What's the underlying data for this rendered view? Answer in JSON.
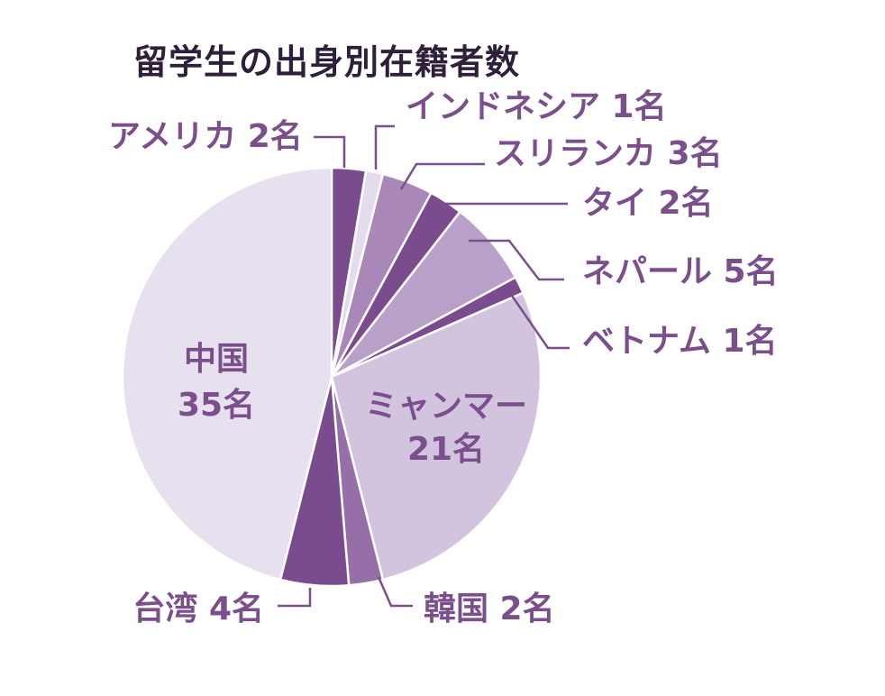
{
  "title": "留学生の出身別在籍者数",
  "chart_data": {
    "type": "pie",
    "title": "留学生の出身別在籍者数",
    "unit": "名",
    "slices": [
      {
        "label": "アメリカ",
        "value": 2,
        "text": "アメリカ 2名",
        "color": "#7b4c8d"
      },
      {
        "label": "インドネシア",
        "value": 1,
        "text": "インドネシア 1名",
        "color": "#e4dced"
      },
      {
        "label": "スリランカ",
        "value": 3,
        "text": "スリランカ 3名",
        "color": "#a987b8"
      },
      {
        "label": "タイ",
        "value": 2,
        "text": "タイ 2名",
        "color": "#7b4c8d"
      },
      {
        "label": "ネパール",
        "value": 5,
        "text": "ネパール 5名",
        "color": "#b9a0c8"
      },
      {
        "label": "ベトナム",
        "value": 1,
        "text": "ベトナム 1名",
        "color": "#7b4c8d"
      },
      {
        "label": "ミャンマー",
        "value": 21,
        "text": "21名",
        "text_top": "ミャンマー",
        "color": "#d2c3de"
      },
      {
        "label": "韓国",
        "value": 2,
        "text": "韓国 2名",
        "color": "#976fa8"
      },
      {
        "label": "台湾",
        "value": 4,
        "text": "台湾 4名",
        "color": "#7b4c8d"
      },
      {
        "label": "中国",
        "value": 35,
        "text": "35名",
        "text_top": "中国",
        "color": "#e7e0ee"
      }
    ]
  }
}
